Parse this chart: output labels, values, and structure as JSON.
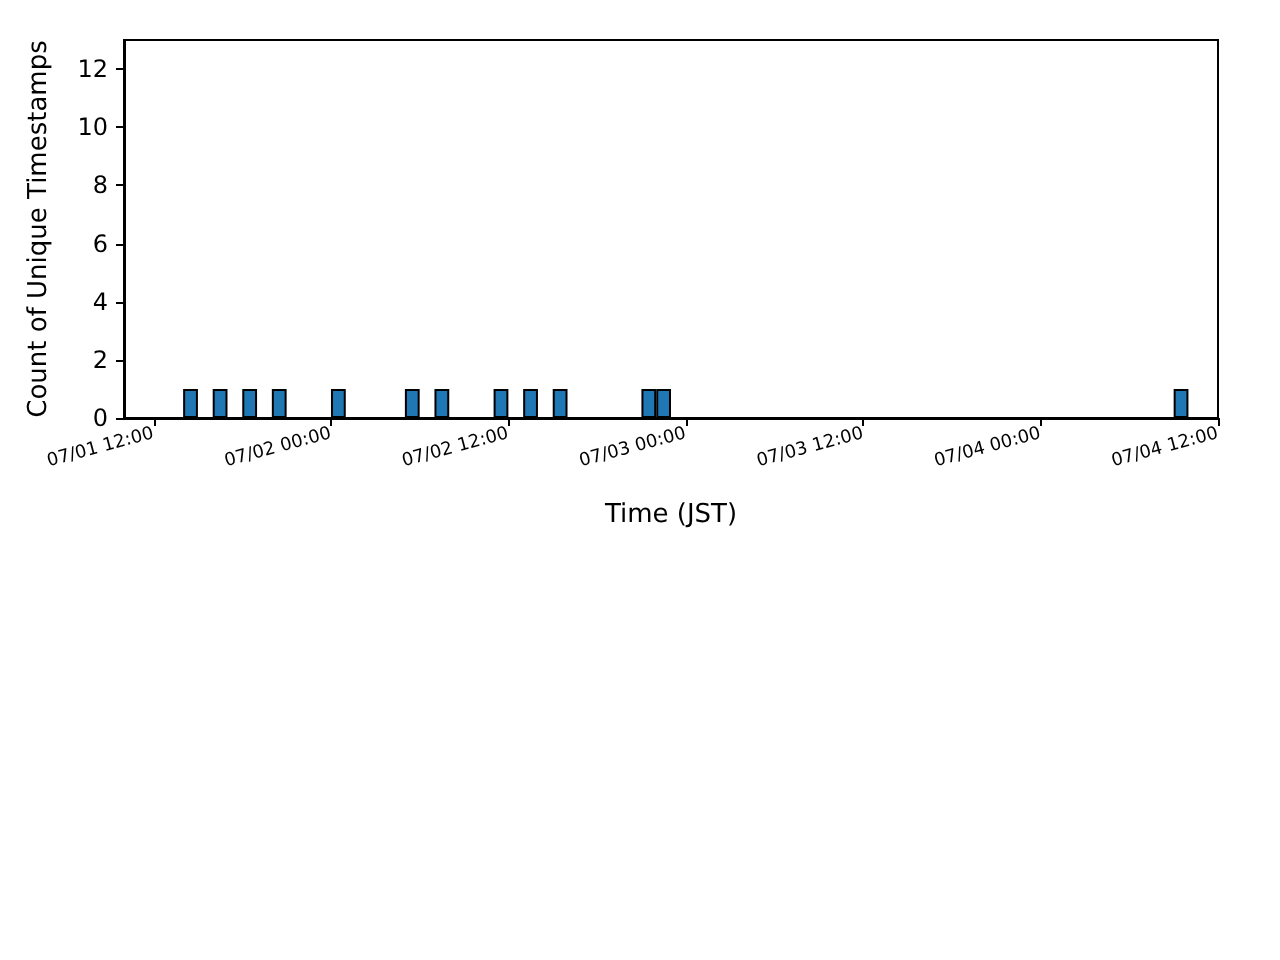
{
  "chart_data": {
    "type": "bar",
    "xlabel": "Time (JST)",
    "ylabel": "Count of Unique Timestamps",
    "x": [
      "--07-01T14:30",
      "--07-01T16:30",
      "--07-01T18:30",
      "--07-01T20:30",
      "--07-02T00:30",
      "--07-02T05:30",
      "--07-02T07:30",
      "--07-02T11:30",
      "--07-02T13:30",
      "--07-02T15:30",
      "--07-02T21:30",
      "--07-02T22:30",
      "--07-04T09:30"
    ],
    "values": [
      1,
      1,
      1,
      1,
      1,
      1,
      1,
      1,
      1,
      1,
      1,
      1,
      1
    ],
    "color": "#1f77b4",
    "xlim": [
      "--07-01T10:00",
      "--07-04T12:00"
    ],
    "xticks": [
      {
        "value": "--07-01T12:00",
        "label": "07/01 12:00"
      },
      {
        "value": "--07-02T00:00",
        "label": "07/02 00:00"
      },
      {
        "value": "--07-02T12:00",
        "label": "07/02 12:00"
      },
      {
        "value": "--07-03T00:00",
        "label": "07/03 00:00"
      },
      {
        "value": "--07-03T12:00",
        "label": "07/03 12:00"
      },
      {
        "value": "--07-04T00:00",
        "label": "07/04 00:00"
      },
      {
        "value": "--07-04T12:00",
        "label": "07/04 12:00"
      }
    ],
    "ylim": [
      0,
      13
    ],
    "yticks": [
      0,
      2,
      4,
      6,
      8,
      10,
      12
    ],
    "grid": false
  }
}
